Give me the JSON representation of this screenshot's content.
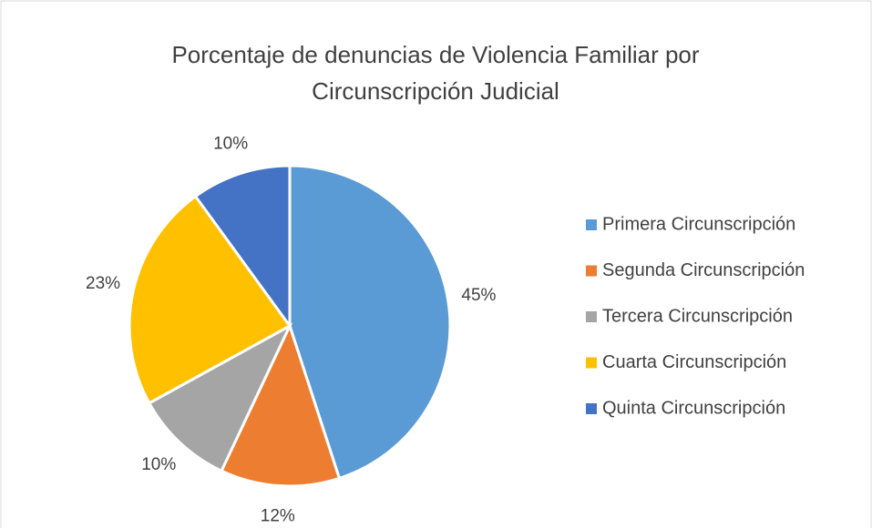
{
  "chart_data": {
    "type": "pie",
    "title": "Porcentaje de denuncias de Violencia Familiar por Circunscripción Judicial",
    "categories": [
      "Primera Circunscripción",
      "Segunda Circunscripción",
      "Tercera Circunscripción",
      "Cuarta Circunscripción",
      "Quinta Circunscripción"
    ],
    "values": [
      45,
      12,
      10,
      23,
      10
    ],
    "value_labels": [
      "45%",
      "12%",
      "10%",
      "23%",
      "10%"
    ],
    "colors": [
      "#5b9bd5",
      "#ed7d31",
      "#a5a5a5",
      "#ffc000",
      "#4472c4"
    ],
    "legend": "right"
  }
}
